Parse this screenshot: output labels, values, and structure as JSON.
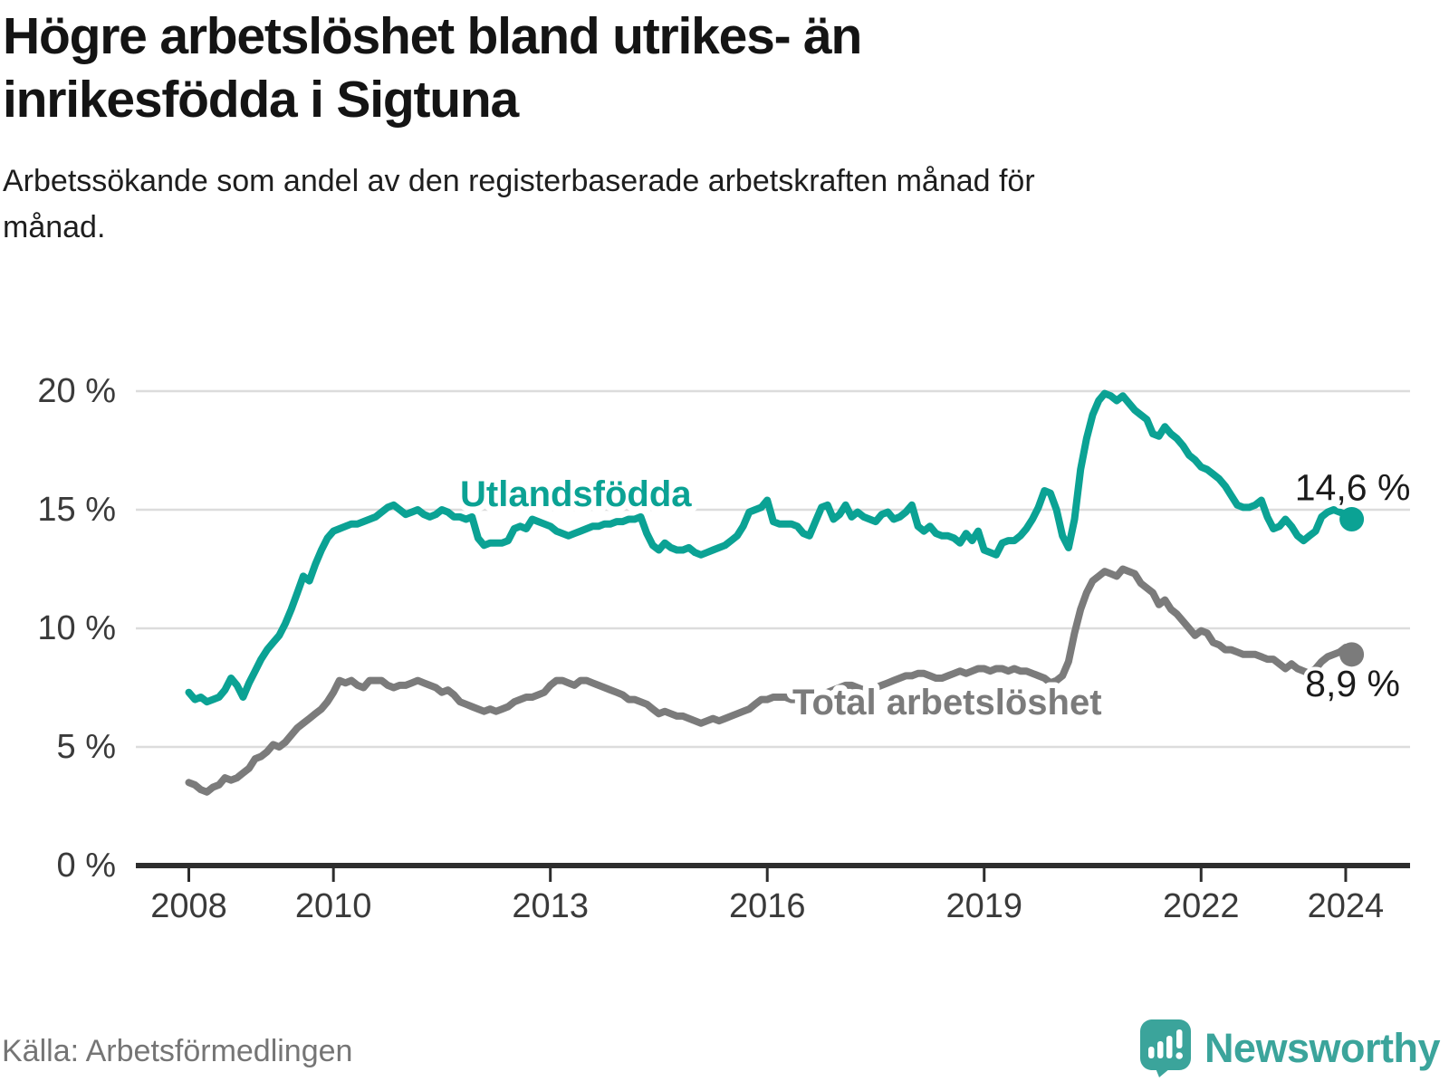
{
  "header": {
    "title": "Högre arbetslöshet bland utrikes- än inrikesfödda i Sigtuna",
    "subtitle": "Arbetssökande som andel av den registerbaserade arbetskraften månad för månad."
  },
  "source": {
    "label": "Källa: Arbetsförmedlingen"
  },
  "branding": {
    "wordmark": "Newsworthy",
    "logo_icon": "bar-chart-speech-bubble",
    "brand_color": "#3ba49b"
  },
  "chart_data": {
    "type": "line",
    "unit": "%",
    "frequency": "monthly",
    "x_start": "2008-01",
    "x_end": "2024-02",
    "ylim": [
      0,
      20
    ],
    "grid": "horizontal",
    "y_ticks": [
      {
        "value": 20,
        "label": "20 %"
      },
      {
        "value": 15,
        "label": "15 %"
      },
      {
        "value": 10,
        "label": "10 %"
      },
      {
        "value": 5,
        "label": "5 %"
      },
      {
        "value": 0,
        "label": "0 %"
      }
    ],
    "x_ticks": [
      {
        "year": 2008,
        "label": "2008"
      },
      {
        "year": 2010,
        "label": "2010"
      },
      {
        "year": 2013,
        "label": "2013"
      },
      {
        "year": 2016,
        "label": "2016"
      },
      {
        "year": 2019,
        "label": "2019"
      },
      {
        "year": 2022,
        "label": "2022"
      },
      {
        "year": 2024,
        "label": "2024"
      }
    ],
    "series": [
      {
        "name": "Utlandsfödda",
        "color": "#0ba294",
        "end_label": "14,6 %",
        "end_value": 14.6,
        "values": [
          7.3,
          7.0,
          7.1,
          6.9,
          7.0,
          7.1,
          7.4,
          7.9,
          7.6,
          7.1,
          7.7,
          8.2,
          8.7,
          9.1,
          9.4,
          9.7,
          10.2,
          10.8,
          11.5,
          12.2,
          12.0,
          12.7,
          13.3,
          13.8,
          14.1,
          14.2,
          14.3,
          14.4,
          14.4,
          14.5,
          14.6,
          14.7,
          14.9,
          15.1,
          15.2,
          15.0,
          14.8,
          14.9,
          15.0,
          14.8,
          14.7,
          14.8,
          15.0,
          14.9,
          14.7,
          14.7,
          14.6,
          14.7,
          13.8,
          13.5,
          13.6,
          13.6,
          13.6,
          13.7,
          14.2,
          14.3,
          14.2,
          14.6,
          14.5,
          14.4,
          14.3,
          14.1,
          14.0,
          13.9,
          14.0,
          14.1,
          14.2,
          14.3,
          14.3,
          14.4,
          14.4,
          14.5,
          14.5,
          14.6,
          14.6,
          14.7,
          14.0,
          13.5,
          13.3,
          13.6,
          13.4,
          13.3,
          13.3,
          13.4,
          13.2,
          13.1,
          13.2,
          13.3,
          13.4,
          13.5,
          13.7,
          13.9,
          14.3,
          14.9,
          15.0,
          15.1,
          15.4,
          14.5,
          14.4,
          14.4,
          14.4,
          14.3,
          14.0,
          13.9,
          14.5,
          15.1,
          15.2,
          14.6,
          14.8,
          15.2,
          14.7,
          14.9,
          14.7,
          14.6,
          14.5,
          14.8,
          14.9,
          14.6,
          14.7,
          14.9,
          15.2,
          14.3,
          14.1,
          14.3,
          14.0,
          13.9,
          13.9,
          13.8,
          13.6,
          14.0,
          13.7,
          14.1,
          13.3,
          13.2,
          13.1,
          13.6,
          13.7,
          13.7,
          13.9,
          14.2,
          14.6,
          15.1,
          15.8,
          15.7,
          15.0,
          13.9,
          13.4,
          14.6,
          16.7,
          18.0,
          19.0,
          19.6,
          19.9,
          19.8,
          19.6,
          19.8,
          19.5,
          19.2,
          19.0,
          18.8,
          18.2,
          18.1,
          18.5,
          18.2,
          18.0,
          17.7,
          17.3,
          17.1,
          16.8,
          16.7,
          16.5,
          16.3,
          16.0,
          15.6,
          15.2,
          15.1,
          15.1,
          15.2,
          15.4,
          14.7,
          14.2,
          14.3,
          14.6,
          14.3,
          13.9,
          13.7,
          13.9,
          14.1,
          14.7,
          14.9,
          15.0,
          14.9,
          14.8,
          14.6
        ]
      },
      {
        "name": "Total arbetslöshet",
        "color": "#7b7b7b",
        "end_label": "8,9 %",
        "end_value": 8.9,
        "values": [
          3.5,
          3.4,
          3.2,
          3.1,
          3.3,
          3.4,
          3.7,
          3.6,
          3.7,
          3.9,
          4.1,
          4.5,
          4.6,
          4.8,
          5.1,
          5.0,
          5.2,
          5.5,
          5.8,
          6.0,
          6.2,
          6.4,
          6.6,
          6.9,
          7.3,
          7.8,
          7.7,
          7.8,
          7.6,
          7.5,
          7.8,
          7.8,
          7.8,
          7.6,
          7.5,
          7.6,
          7.6,
          7.7,
          7.8,
          7.7,
          7.6,
          7.5,
          7.3,
          7.4,
          7.2,
          6.9,
          6.8,
          6.7,
          6.6,
          6.5,
          6.6,
          6.5,
          6.6,
          6.7,
          6.9,
          7.0,
          7.1,
          7.1,
          7.2,
          7.3,
          7.6,
          7.8,
          7.8,
          7.7,
          7.6,
          7.8,
          7.8,
          7.7,
          7.6,
          7.5,
          7.4,
          7.3,
          7.2,
          7.0,
          7.0,
          6.9,
          6.8,
          6.6,
          6.4,
          6.5,
          6.4,
          6.3,
          6.3,
          6.2,
          6.1,
          6.0,
          6.1,
          6.2,
          6.1,
          6.2,
          6.3,
          6.4,
          6.5,
          6.6,
          6.8,
          7.0,
          7.0,
          7.1,
          7.1,
          7.1,
          7.0,
          7.0,
          6.9,
          7.0,
          7.1,
          7.2,
          7.3,
          7.4,
          7.5,
          7.6,
          7.6,
          7.5,
          7.4,
          7.4,
          7.5,
          7.6,
          7.7,
          7.8,
          7.9,
          8.0,
          8.0,
          8.1,
          8.1,
          8.0,
          7.9,
          7.9,
          8.0,
          8.1,
          8.2,
          8.1,
          8.2,
          8.3,
          8.3,
          8.2,
          8.3,
          8.3,
          8.2,
          8.3,
          8.2,
          8.2,
          8.1,
          8.0,
          7.9,
          7.7,
          7.8,
          8.0,
          8.6,
          9.8,
          10.8,
          11.5,
          12.0,
          12.2,
          12.4,
          12.3,
          12.2,
          12.5,
          12.4,
          12.3,
          11.9,
          11.7,
          11.5,
          11.0,
          11.2,
          10.8,
          10.6,
          10.3,
          10.0,
          9.7,
          9.9,
          9.8,
          9.4,
          9.3,
          9.1,
          9.1,
          9.0,
          8.9,
          8.9,
          8.9,
          8.8,
          8.7,
          8.7,
          8.5,
          8.3,
          8.5,
          8.3,
          8.2,
          8.1,
          8.3,
          8.6,
          8.8,
          8.9,
          9.0,
          9.2,
          8.9
        ]
      }
    ]
  }
}
